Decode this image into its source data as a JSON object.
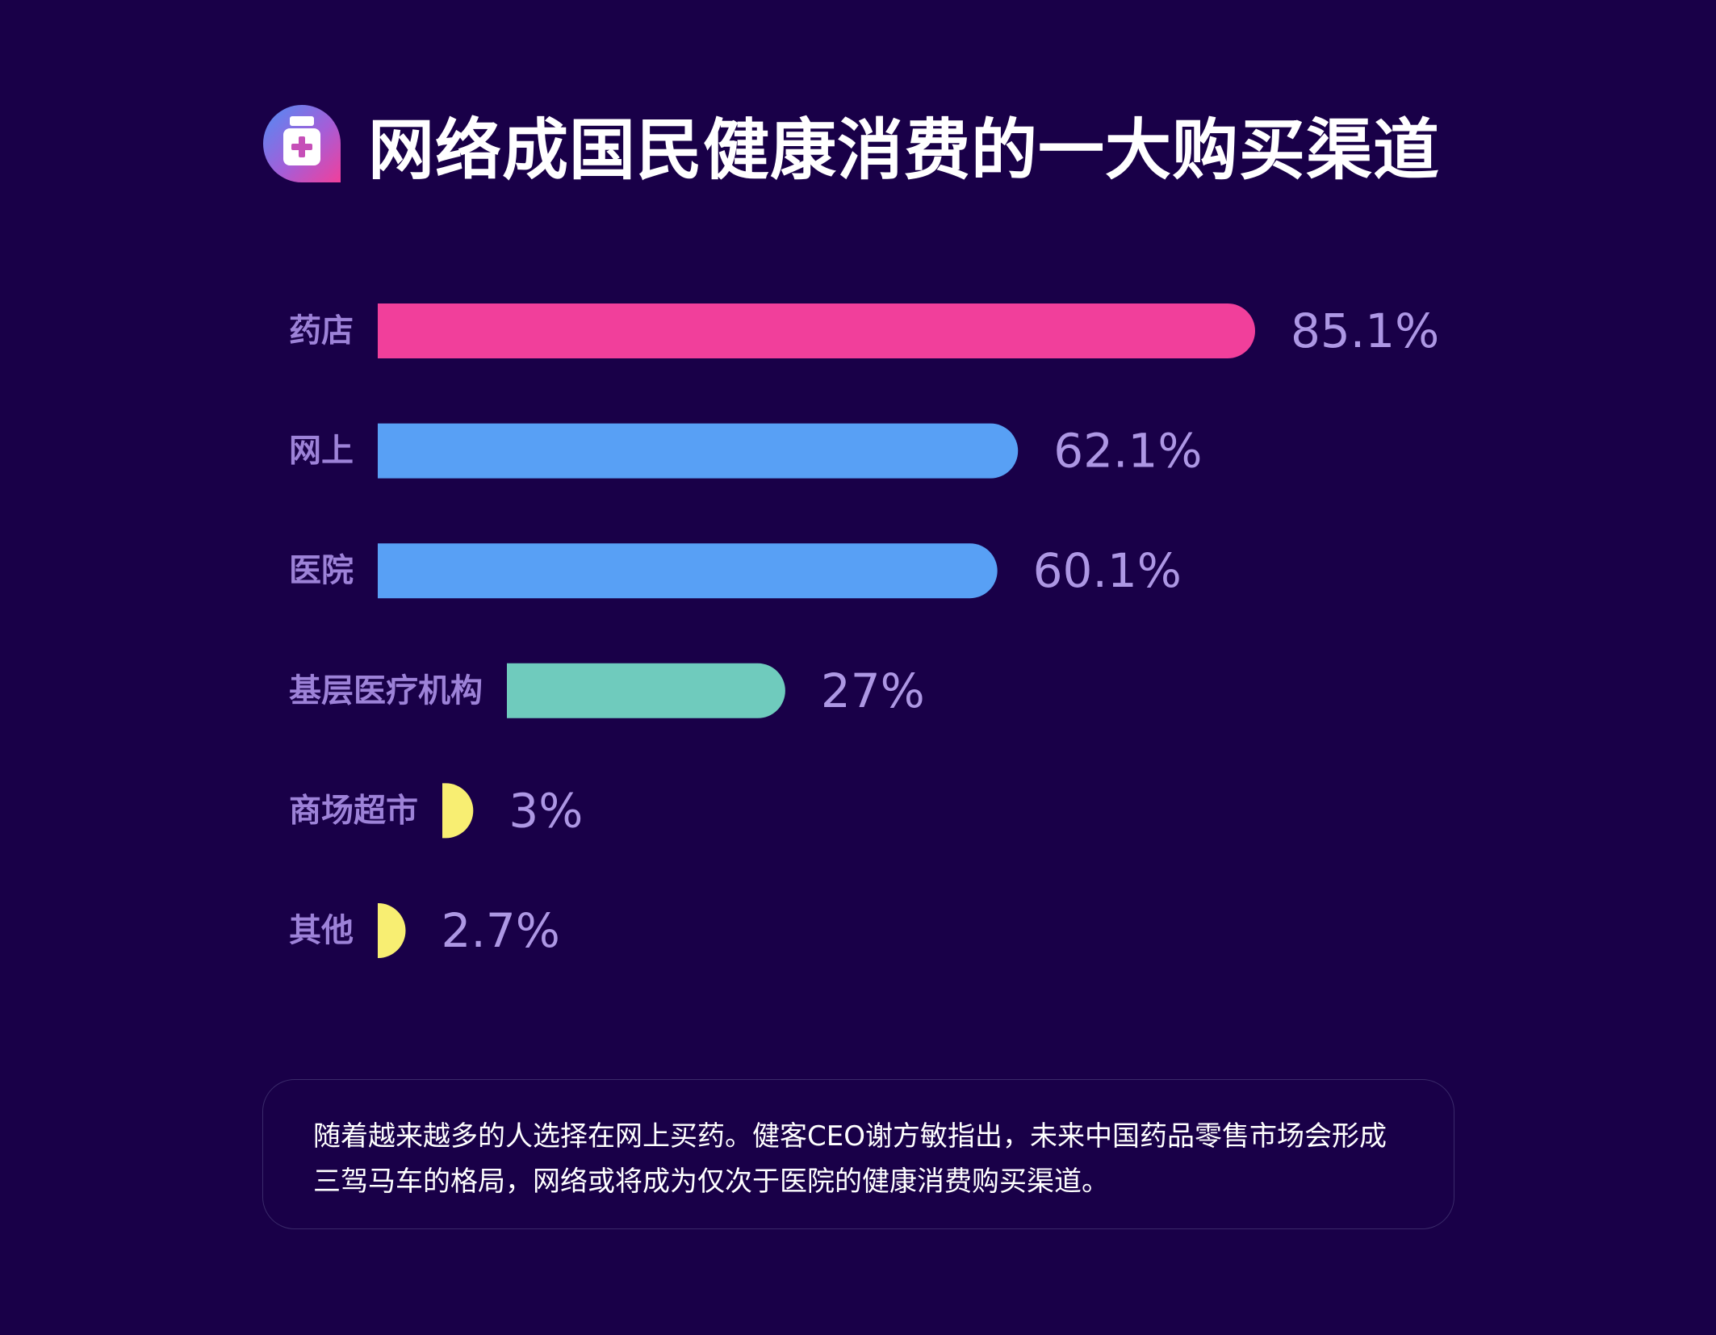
{
  "header": {
    "title": "网络成国民健康消费的一大购买渠道",
    "icon": "medicine-bottle-icon"
  },
  "chart_data": {
    "type": "bar",
    "orientation": "horizontal",
    "title": "网络成国民健康消费的一大购买渠道",
    "categories": [
      "药店",
      "网上",
      "医院",
      "基层医疗机构",
      "商场超市",
      "其他"
    ],
    "values": [
      85.1,
      62.1,
      60.1,
      27,
      3,
      2.7
    ],
    "value_labels": [
      "85.1%",
      "62.1%",
      "60.1%",
      "27%",
      "3%",
      "2.7%"
    ],
    "unit": "%",
    "xlim": [
      0,
      100
    ],
    "grid": false,
    "colors": [
      "#f13f9b",
      "#58a0f5",
      "#58a0f5",
      "#6fcbbd",
      "#f8ee72",
      "#f8ee72"
    ]
  },
  "note": {
    "text": "随着越来越多的人选择在网上买药。健客CEO谢方敏指出，未来中国药品零售市场会形成三驾马车的格局，网络或将成为仅次于医院的健康消费购买渠道。"
  },
  "colors": {
    "background": "#190048",
    "label": "#9d82d8",
    "value": "#ad97e4"
  }
}
